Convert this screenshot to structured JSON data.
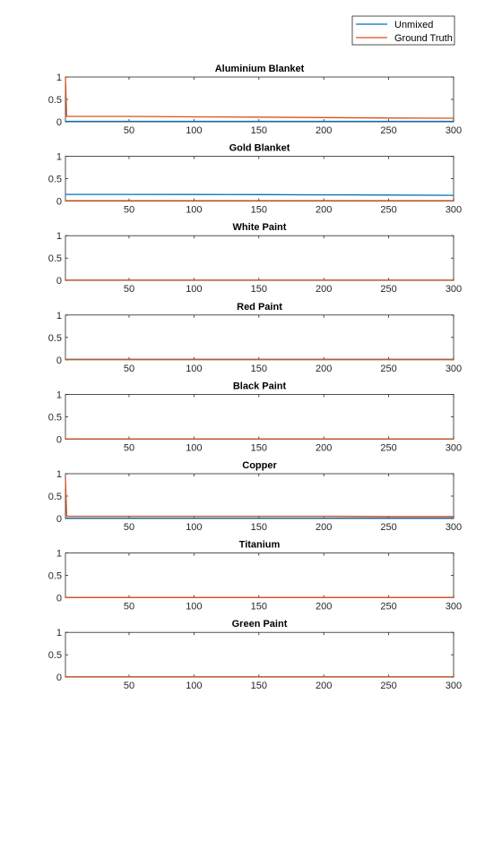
{
  "legend": [
    {
      "label": "Unmixed",
      "color": "#0072BD"
    },
    {
      "label": "Ground Truth",
      "color": "#D95319"
    }
  ],
  "chart_data": [
    {
      "type": "line",
      "title": "Aluminium Blanket",
      "xlim": [
        1,
        300
      ],
      "ylim": [
        0,
        1
      ],
      "xticks": [
        50,
        100,
        150,
        200,
        250,
        300
      ],
      "yticks": [
        0,
        0.5,
        1
      ],
      "series": [
        {
          "name": "Unmixed",
          "x": [
            1,
            300
          ],
          "y": [
            0.01,
            0.01
          ]
        },
        {
          "name": "Ground Truth",
          "x": [
            1,
            2,
            3,
            50,
            100,
            150,
            200,
            250,
            300
          ],
          "y": [
            1.0,
            0.12,
            0.12,
            0.12,
            0.11,
            0.105,
            0.095,
            0.085,
            0.08
          ]
        }
      ]
    },
    {
      "type": "line",
      "title": "Gold Blanket",
      "xlim": [
        1,
        300
      ],
      "ylim": [
        0,
        1
      ],
      "xticks": [
        50,
        100,
        150,
        200,
        250,
        300
      ],
      "yticks": [
        0,
        0.5,
        1
      ],
      "series": [
        {
          "name": "Unmixed",
          "x": [
            1,
            50,
            100,
            150,
            200,
            250,
            300
          ],
          "y": [
            0.15,
            0.15,
            0.148,
            0.145,
            0.14,
            0.135,
            0.13
          ]
        },
        {
          "name": "Ground Truth",
          "x": [
            1,
            300
          ],
          "y": [
            0.01,
            0.01
          ]
        }
      ]
    },
    {
      "type": "line",
      "title": "White Paint",
      "xlim": [
        1,
        300
      ],
      "ylim": [
        0,
        1
      ],
      "xticks": [
        50,
        100,
        150,
        200,
        250,
        300
      ],
      "yticks": [
        0,
        0.5,
        1
      ],
      "series": [
        {
          "name": "Unmixed",
          "x": [
            1,
            300
          ],
          "y": [
            0.005,
            0.005
          ]
        },
        {
          "name": "Ground Truth",
          "x": [
            1,
            300
          ],
          "y": [
            0.005,
            0.005
          ]
        }
      ]
    },
    {
      "type": "line",
      "title": "Red Paint",
      "xlim": [
        1,
        300
      ],
      "ylim": [
        0,
        1
      ],
      "xticks": [
        50,
        100,
        150,
        200,
        250,
        300
      ],
      "yticks": [
        0,
        0.5,
        1
      ],
      "series": [
        {
          "name": "Unmixed",
          "x": [
            1,
            300
          ],
          "y": [
            0.01,
            0.01
          ]
        },
        {
          "name": "Ground Truth",
          "x": [
            1,
            300
          ],
          "y": [
            0.005,
            0.005
          ]
        }
      ]
    },
    {
      "type": "line",
      "title": "Black Paint",
      "xlim": [
        1,
        300
      ],
      "ylim": [
        0,
        1
      ],
      "xticks": [
        50,
        100,
        150,
        200,
        250,
        300
      ],
      "yticks": [
        0,
        0.5,
        1
      ],
      "series": [
        {
          "name": "Unmixed",
          "x": [
            1,
            300
          ],
          "y": [
            0.005,
            0.005
          ]
        },
        {
          "name": "Ground Truth",
          "x": [
            1,
            300
          ],
          "y": [
            0.005,
            0.005
          ]
        }
      ]
    },
    {
      "type": "line",
      "title": "Copper",
      "xlim": [
        1,
        300
      ],
      "ylim": [
        0,
        1
      ],
      "xticks": [
        50,
        100,
        150,
        200,
        250,
        300
      ],
      "yticks": [
        0,
        0.5,
        1
      ],
      "series": [
        {
          "name": "Unmixed",
          "x": [
            1,
            300
          ],
          "y": [
            0.01,
            0.01
          ]
        },
        {
          "name": "Ground Truth",
          "x": [
            1,
            2,
            3,
            50,
            100,
            150,
            200,
            250,
            300
          ],
          "y": [
            0.9,
            0.05,
            0.05,
            0.05,
            0.05,
            0.05,
            0.05,
            0.045,
            0.045
          ]
        }
      ]
    },
    {
      "type": "line",
      "title": "Titanium",
      "xlim": [
        1,
        300
      ],
      "ylim": [
        0,
        1
      ],
      "xticks": [
        50,
        100,
        150,
        200,
        250,
        300
      ],
      "yticks": [
        0,
        0.5,
        1
      ],
      "series": [
        {
          "name": "Unmixed",
          "x": [
            1,
            300
          ],
          "y": [
            0.005,
            0.005
          ]
        },
        {
          "name": "Ground Truth",
          "x": [
            1,
            300
          ],
          "y": [
            0.005,
            0.005
          ]
        }
      ]
    },
    {
      "type": "line",
      "title": "Green Paint",
      "xlim": [
        1,
        300
      ],
      "ylim": [
        0,
        1
      ],
      "xticks": [
        50,
        100,
        150,
        200,
        250,
        300
      ],
      "yticks": [
        0,
        0.5,
        1
      ],
      "series": [
        {
          "name": "Unmixed",
          "x": [
            1,
            300
          ],
          "y": [
            0.005,
            0.005
          ]
        },
        {
          "name": "Ground Truth",
          "x": [
            1,
            300
          ],
          "y": [
            0.005,
            0.005
          ]
        }
      ]
    }
  ]
}
